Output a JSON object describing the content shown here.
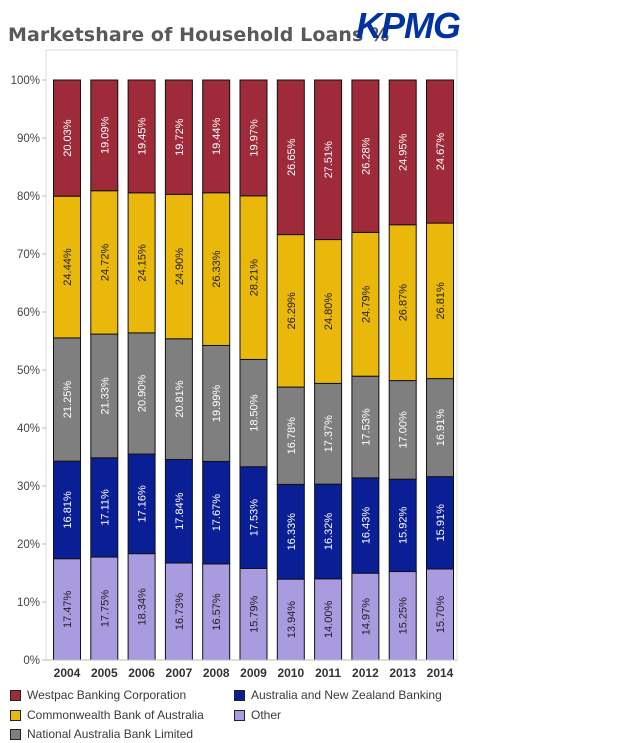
{
  "title": "Marketshare of Household Loans %",
  "brand": {
    "logo_text": "KPMG",
    "color": "#0033a0"
  },
  "chart_data": {
    "type": "bar",
    "stacked": true,
    "categories": [
      "2004",
      "2005",
      "2006",
      "2007",
      "2008",
      "2009",
      "2010",
      "2011",
      "2012",
      "2013",
      "2014"
    ],
    "series": [
      {
        "name": "Other",
        "color": "#a99be0",
        "values": [
          17.47,
          17.75,
          18.34,
          16.73,
          16.57,
          15.79,
          13.94,
          14.0,
          14.97,
          15.25,
          15.7
        ]
      },
      {
        "name": "Australia and New Zealand Banking",
        "color": "#0a1e96",
        "values": [
          16.81,
          17.11,
          17.16,
          17.84,
          17.67,
          17.53,
          16.33,
          16.32,
          16.43,
          15.92,
          15.91
        ]
      },
      {
        "name": "National Australia Bank Limited",
        "color": "#7f7f7f",
        "values": [
          21.25,
          21.33,
          20.9,
          20.81,
          19.99,
          18.5,
          16.78,
          17.37,
          17.53,
          17.0,
          16.91
        ]
      },
      {
        "name": "Commonwealth Bank of Australia",
        "color": "#eab70b",
        "values": [
          24.44,
          24.72,
          24.15,
          24.9,
          26.33,
          28.21,
          26.29,
          24.8,
          24.79,
          26.87,
          26.81
        ]
      },
      {
        "name": "Westpac Banking Corporation",
        "color": "#9e2a3a",
        "values": [
          20.03,
          19.09,
          19.45,
          19.72,
          19.44,
          19.97,
          26.65,
          27.51,
          26.28,
          24.95,
          24.67
        ]
      }
    ],
    "label_colors": {
      "Other": "#222222",
      "Australia and New Zealand Banking": "#ffffff",
      "National Australia Bank Limited": "#ffffff",
      "Commonwealth Bank of Australia": "#222222",
      "Westpac Banking Corporation": "#ffffff"
    },
    "y_tick_labels": [
      "0%",
      "10%",
      "20%",
      "30%",
      "40%",
      "50%",
      "60%",
      "70%",
      "80%",
      "90%",
      "100%"
    ],
    "ylim": [
      0,
      100
    ],
    "grid": false,
    "legend": {
      "placement": "bottom",
      "entries": [
        {
          "name": "Westpac Banking Corporation",
          "color": "#9e2a3a"
        },
        {
          "name": "Australia and New Zealand Banking",
          "color": "#0a1e96"
        },
        {
          "name": "Commonwealth Bank of Australia",
          "color": "#eab70b"
        },
        {
          "name": "Other",
          "color": "#a99be0"
        },
        {
          "name": "National Australia Bank Limited",
          "color": "#7f7f7f"
        }
      ]
    }
  }
}
